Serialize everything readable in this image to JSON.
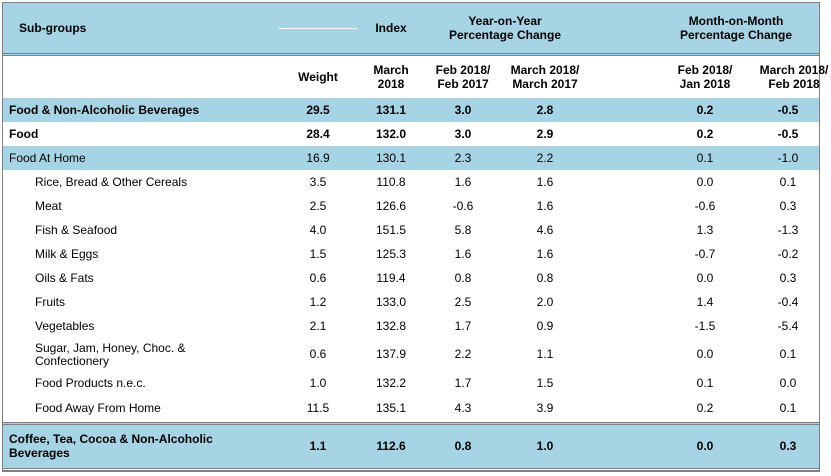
{
  "header": {
    "subgroups": "Sub-groups",
    "index": "Index",
    "yoy": "Year-on-Year Percentage Change",
    "mom": "Month-on-Month Percentage Change",
    "weight": "Weight",
    "col_index": "March 2018",
    "col_yoy1": "Feb 2018/ Feb 2017",
    "col_yoy2": "March 2018/ March 2017",
    "col_mom1": "Feb 2018/ Jan 2018",
    "col_mom2": "March 2018/ Feb 2018"
  },
  "rows": [
    {
      "label": "Food & Non-Alcoholic Beverages",
      "weight": "29.5",
      "index": "131.1",
      "yoy1": "3.0",
      "yoy2": "2.8",
      "mom1": "0.2",
      "mom2": "-0.5"
    },
    {
      "label": "Food",
      "weight": "28.4",
      "index": "132.0",
      "yoy1": "3.0",
      "yoy2": "2.9",
      "mom1": "0.2",
      "mom2": "-0.5"
    },
    {
      "label": "Food At Home",
      "weight": "16.9",
      "index": "130.1",
      "yoy1": "2.3",
      "yoy2": "2.2",
      "mom1": "0.1",
      "mom2": "-1.0"
    },
    {
      "label": "Rice, Bread & Other Cereals",
      "weight": "3.5",
      "index": "110.8",
      "yoy1": "1.6",
      "yoy2": "1.6",
      "mom1": "0.0",
      "mom2": "0.1"
    },
    {
      "label": "Meat",
      "weight": "2.5",
      "index": "126.6",
      "yoy1": "-0.6",
      "yoy2": "1.6",
      "mom1": "-0.6",
      "mom2": "0.3"
    },
    {
      "label": "Fish & Seafood",
      "weight": "4.0",
      "index": "151.5",
      "yoy1": "5.8",
      "yoy2": "4.6",
      "mom1": "1.3",
      "mom2": "-1.3"
    },
    {
      "label": "Milk & Eggs",
      "weight": "1.5",
      "index": "125.3",
      "yoy1": "1.6",
      "yoy2": "1.6",
      "mom1": "-0.7",
      "mom2": "-0.2"
    },
    {
      "label": "Oils & Fats",
      "weight": "0.6",
      "index": "119.4",
      "yoy1": "0.8",
      "yoy2": "0.8",
      "mom1": "0.0",
      "mom2": "0.3"
    },
    {
      "label": "Fruits",
      "weight": "1.2",
      "index": "133.0",
      "yoy1": "2.5",
      "yoy2": "2.0",
      "mom1": "1.4",
      "mom2": "-0.4"
    },
    {
      "label": "Vegetables",
      "weight": "2.1",
      "index": "132.8",
      "yoy1": "1.7",
      "yoy2": "0.9",
      "mom1": "-1.5",
      "mom2": "-5.4"
    },
    {
      "label": "Sugar, Jam, Honey, Choc. & Confectionery",
      "weight": "0.6",
      "index": "137.9",
      "yoy1": "2.2",
      "yoy2": "1.1",
      "mom1": "0.0",
      "mom2": "0.1"
    },
    {
      "label": "Food Products n.e.c.",
      "weight": "1.0",
      "index": "132.2",
      "yoy1": "1.7",
      "yoy2": "1.5",
      "mom1": "0.1",
      "mom2": "0.0"
    },
    {
      "label": "Food Away From Home",
      "weight": "11.5",
      "index": "135.1",
      "yoy1": "4.3",
      "yoy2": "3.9",
      "mom1": "0.2",
      "mom2": "0.1"
    },
    {
      "label": "Coffee, Tea, Cocoa & Non-Alcoholic Beverages",
      "weight": "1.1",
      "index": "112.6",
      "yoy1": "0.8",
      "yoy2": "1.0",
      "mom1": "0.0",
      "mom2": "0.3"
    }
  ]
}
